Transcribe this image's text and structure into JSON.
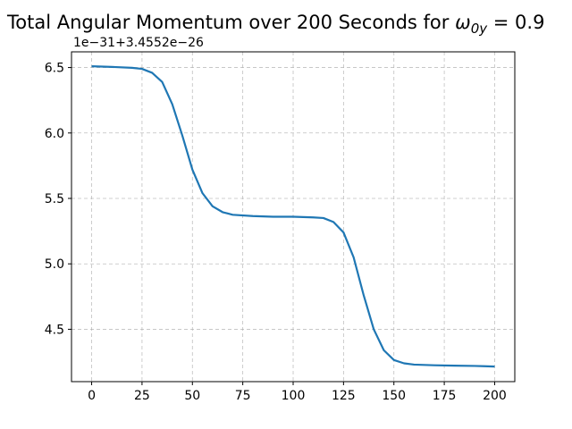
{
  "chart_data": {
    "type": "line",
    "title": "Total Angular Momentum over 200 Seconds for ω₀ᵧ = 0.9",
    "title_parts": {
      "prefix": "Total Angular Momentum over 200 Seconds for ",
      "symbol": "ω",
      "subscript": "0y",
      "suffix": " = 0.9"
    },
    "xlabel": "",
    "ylabel": "",
    "y_offset_text": "1e−31+3.4552e−26",
    "xlim": [
      -10,
      210
    ],
    "ylim": [
      4.1,
      6.62
    ],
    "xticks": [
      0,
      25,
      50,
      75,
      100,
      125,
      150,
      175,
      200
    ],
    "xtick_labels": [
      "0",
      "25",
      "50",
      "75",
      "100",
      "125",
      "150",
      "175",
      "200"
    ],
    "yticks": [
      4.5,
      5.0,
      5.5,
      6.0,
      6.5
    ],
    "ytick_labels": [
      "4.5",
      "5.0",
      "5.5",
      "6.0",
      "6.5"
    ],
    "grid": true,
    "line_color": "#1f77b4",
    "series": [
      {
        "x": [
          0,
          10,
          20,
          25,
          30,
          35,
          40,
          45,
          50,
          55,
          60,
          65,
          70,
          80,
          90,
          100,
          110,
          115,
          120,
          125,
          130,
          135,
          140,
          145,
          150,
          155,
          160,
          170,
          180,
          190,
          195,
          200
        ],
        "values": [
          6.51,
          6.505,
          6.498,
          6.49,
          6.46,
          6.39,
          6.22,
          5.98,
          5.72,
          5.54,
          5.44,
          5.395,
          5.375,
          5.365,
          5.36,
          5.36,
          5.355,
          5.35,
          5.32,
          5.24,
          5.05,
          4.76,
          4.5,
          4.34,
          4.265,
          4.24,
          4.23,
          4.225,
          4.222,
          4.22,
          4.218,
          4.215
        ]
      }
    ]
  }
}
